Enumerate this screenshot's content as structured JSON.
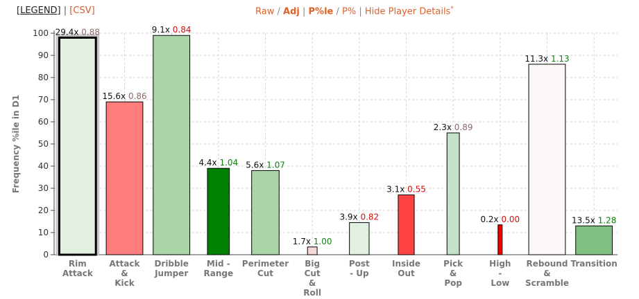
{
  "links": {
    "legend": "[LEGEND]",
    "divider": "|",
    "csv": "[CSV]",
    "raw": "Raw",
    "adj": "Adj",
    "pctile": "P%le",
    "pct": "P%",
    "slash": "/",
    "hide": "Hide Player Details",
    "asterisk": "*"
  },
  "colors": {
    "dark_green": "#008000",
    "mid_green": "#80c080",
    "light_green": "#a9d5a9",
    "pale_green": "#c6e2c6",
    "faint_green": "#e2f0e2",
    "near_white": "#fdf8f8",
    "pink": "#f4d8d8",
    "salmon": "#ff7d7d",
    "red": "#ff4343",
    "bright_red": "#ee0000",
    "label_green": "#108010",
    "label_red": "#d01010",
    "label_gray": "#8a6b6b"
  },
  "chart_data": {
    "type": "bar",
    "ylabel": "Frequency %ile in D1",
    "ylim": [
      0,
      100
    ],
    "yticks": [
      0,
      10,
      20,
      30,
      40,
      50,
      60,
      70,
      80,
      90,
      100
    ],
    "grid": true,
    "bars": [
      {
        "category": [
          "Rim",
          "Attack"
        ],
        "value": 98,
        "freq": "29.4x",
        "eff": "0.88",
        "eff_color": "label_gray",
        "fill": "faint_green",
        "highlight": true
      },
      {
        "category": [
          "Attack",
          "&",
          "Kick"
        ],
        "value": 69,
        "freq": "15.6x",
        "eff": "0.86",
        "eff_color": "label_gray",
        "fill": "salmon"
      },
      {
        "category": [
          "Dribble",
          "Jumper"
        ],
        "value": 99,
        "freq": "9.1x",
        "eff": "0.84",
        "eff_color": "label_red",
        "fill": "light_green"
      },
      {
        "category": [
          "Mid -",
          "Range"
        ],
        "value": 39,
        "freq": "4.4x",
        "eff": "1.04",
        "eff_color": "label_green",
        "fill": "dark_green"
      },
      {
        "category": [
          "Perimeter",
          "Cut"
        ],
        "value": 38,
        "freq": "5.6x",
        "eff": "1.07",
        "eff_color": "label_green",
        "fill": "light_green"
      },
      {
        "category": [
          "Big",
          "Cut",
          "&",
          "Roll"
        ],
        "value": 3.5,
        "freq": "1.7x",
        "eff": "1.00",
        "eff_color": "label_green",
        "fill": "pink"
      },
      {
        "category": [
          "Post",
          "- Up"
        ],
        "value": 14.5,
        "freq": "3.9x",
        "eff": "0.82",
        "eff_color": "label_red",
        "fill": "faint_green"
      },
      {
        "category": [
          "Inside",
          "Out"
        ],
        "value": 27,
        "freq": "3.1x",
        "eff": "0.55",
        "eff_color": "label_red",
        "fill": "red"
      },
      {
        "category": [
          "Pick",
          "&",
          "Pop"
        ],
        "value": 55,
        "freq": "2.3x",
        "eff": "0.89",
        "eff_color": "label_gray",
        "fill": "pale_green"
      },
      {
        "category": [
          "High",
          "-",
          "Low"
        ],
        "value": 13.5,
        "freq": "0.2x",
        "eff": "0.00",
        "eff_color": "label_red",
        "fill": "bright_red"
      },
      {
        "category": [
          "Rebound",
          "&",
          "Scramble"
        ],
        "value": 86,
        "freq": "11.3x",
        "eff": "1.13",
        "eff_color": "label_green",
        "fill": "near_white"
      },
      {
        "category": [
          "Transition"
        ],
        "value": 13,
        "freq": "13.5x",
        "eff": "1.28",
        "eff_color": "label_green",
        "fill": "mid_green"
      }
    ]
  }
}
